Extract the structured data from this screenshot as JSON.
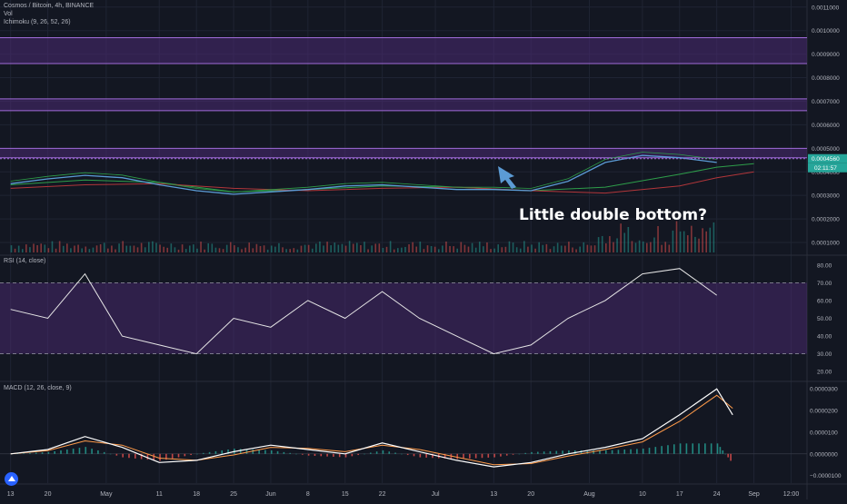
{
  "header": {
    "symbol_line": "Cosmos / Bitcoin, 4h, BINANCE",
    "vol_label": "Vol",
    "ichimoku_label": "Ichimoku (9, 26, 52, 26)",
    "rsi_label": "RSI (14, close)",
    "macd_label": "MACD (12, 26, close, 9)"
  },
  "annotation": {
    "text": "Little double bottom?"
  },
  "colors": {
    "background": "#131722",
    "grid": "#1f2433",
    "zone_fill": "#4b2a72",
    "zone_edge": "#a06bd8",
    "price_line": "#5b9bd5",
    "ichimoku_green": "#2e9e4a",
    "ichimoku_red": "#b2363a",
    "rsi_line": "#e6e6e6",
    "macd_line": "#ffffff",
    "signal_line": "#ff9b4a",
    "hist_up": "#26a69a",
    "hist_down": "#ef5350",
    "volume": "#26a69a",
    "arrow": "#5b9bd5",
    "price_badge": "#26a69a"
  },
  "chart_data": [
    {
      "type": "line",
      "panel": "price",
      "y_axis_ticks": [
        "0.0011000",
        "0.0010000",
        "0.0009000",
        "0.0008000",
        "0.0007000",
        "0.0006000",
        "0.0005000",
        "0.0004000",
        "0.0003000",
        "0.0002000",
        "0.0001000"
      ],
      "ylim": [
        5e-05,
        0.00113
      ],
      "current_price_label": "0.0004560",
      "countdown_label": "02:11:57",
      "resistance_zones": [
        [
          0.00086,
          0.00097
        ],
        [
          0.00066,
          0.00071
        ],
        [
          0.00046,
          0.0005
        ]
      ],
      "series": [
        {
          "role": "price",
          "x": [
            0,
            7,
            14,
            21,
            28,
            35,
            42,
            49,
            56,
            63,
            70,
            77,
            84,
            91,
            98,
            105,
            112,
            119,
            126,
            133
          ],
          "y": [
            0.00035,
            0.00037,
            0.000385,
            0.000375,
            0.000345,
            0.00032,
            0.000305,
            0.000315,
            0.000325,
            0.00034,
            0.000345,
            0.000335,
            0.000325,
            0.000325,
            0.00032,
            0.00036,
            0.00044,
            0.00047,
            0.00046,
            0.00044
          ]
        },
        {
          "role": "ichimoku_leading_a",
          "x": [
            0,
            14,
            28,
            42,
            56,
            70,
            84,
            98,
            112,
            126,
            133,
            140
          ],
          "y": [
            0.000345,
            0.000365,
            0.000355,
            0.000315,
            0.000325,
            0.00034,
            0.000335,
            0.00032,
            0.000335,
            0.00039,
            0.00042,
            0.000435
          ]
        },
        {
          "role": "ichimoku_leading_b",
          "x": [
            0,
            14,
            28,
            42,
            56,
            70,
            84,
            98,
            112,
            126,
            133,
            140
          ],
          "y": [
            0.00033,
            0.000345,
            0.00035,
            0.00033,
            0.00032,
            0.00033,
            0.000335,
            0.00032,
            0.00031,
            0.00034,
            0.000375,
            0.0004
          ]
        }
      ]
    },
    {
      "type": "line",
      "panel": "rsi",
      "y_axis_ticks": [
        "80.00",
        "70.00",
        "60.00",
        "50.00",
        "40.00",
        "30.00",
        "20.00"
      ],
      "ylim": [
        15,
        85
      ],
      "band": [
        30,
        70
      ],
      "x": [
        0,
        7,
        14,
        21,
        28,
        35,
        42,
        49,
        56,
        63,
        70,
        77,
        84,
        91,
        98,
        105,
        112,
        119,
        126,
        133
      ],
      "values": [
        55,
        50,
        75,
        40,
        35,
        30,
        50,
        45,
        60,
        50,
        65,
        50,
        40,
        30,
        35,
        50,
        60,
        75,
        78,
        63
      ]
    },
    {
      "type": "line",
      "panel": "macd",
      "y_axis_ticks": [
        "0.0000300",
        "0.0000200",
        "0.0000100",
        "0.0000000",
        "−0.0000100"
      ],
      "ylim": [
        -1.35e-05,
        3.3e-05
      ],
      "series": [
        {
          "name": "MACD",
          "x": [
            0,
            7,
            14,
            21,
            28,
            35,
            42,
            49,
            56,
            63,
            70,
            77,
            84,
            91,
            98,
            105,
            112,
            119,
            126,
            133,
            136
          ],
          "y": [
            0.0,
            2e-06,
            8e-06,
            3e-06,
            -4e-06,
            -3e-06,
            1e-06,
            4e-06,
            2e-06,
            0.0,
            5e-06,
            1e-06,
            -3e-06,
            -6e-06,
            -4e-06,
            0.0,
            3e-06,
            7e-06,
            1.8e-05,
            3e-05,
            1.8e-05
          ]
        },
        {
          "name": "Signal",
          "x": [
            0,
            7,
            14,
            21,
            28,
            35,
            42,
            49,
            56,
            63,
            70,
            77,
            84,
            91,
            98,
            105,
            112,
            119,
            126,
            133,
            136
          ],
          "y": [
            0.0,
            1.5e-06,
            6e-06,
            4e-06,
            -2e-06,
            -3e-06,
            -5e-07,
            3e-06,
            2.5e-06,
            1e-06,
            4e-06,
            2e-06,
            -1.5e-06,
            -5e-06,
            -4.5e-06,
            -1e-06,
            2e-06,
            5.5e-06,
            1.5e-05,
            2.7e-05,
            2.1e-05
          ]
        }
      ]
    }
  ],
  "time_axis": {
    "labels": [
      "13",
      "20",
      "May",
      "11",
      "18",
      "25",
      "Jun",
      "8",
      "15",
      "22",
      "Jul",
      "13",
      "20",
      "Aug",
      "10",
      "17",
      "24",
      "Sep",
      "12:00"
    ],
    "positions": [
      0,
      7,
      18,
      28,
      35,
      42,
      49,
      56,
      63,
      70,
      80,
      91,
      98,
      109,
      119,
      126,
      133,
      140,
      147
    ]
  }
}
